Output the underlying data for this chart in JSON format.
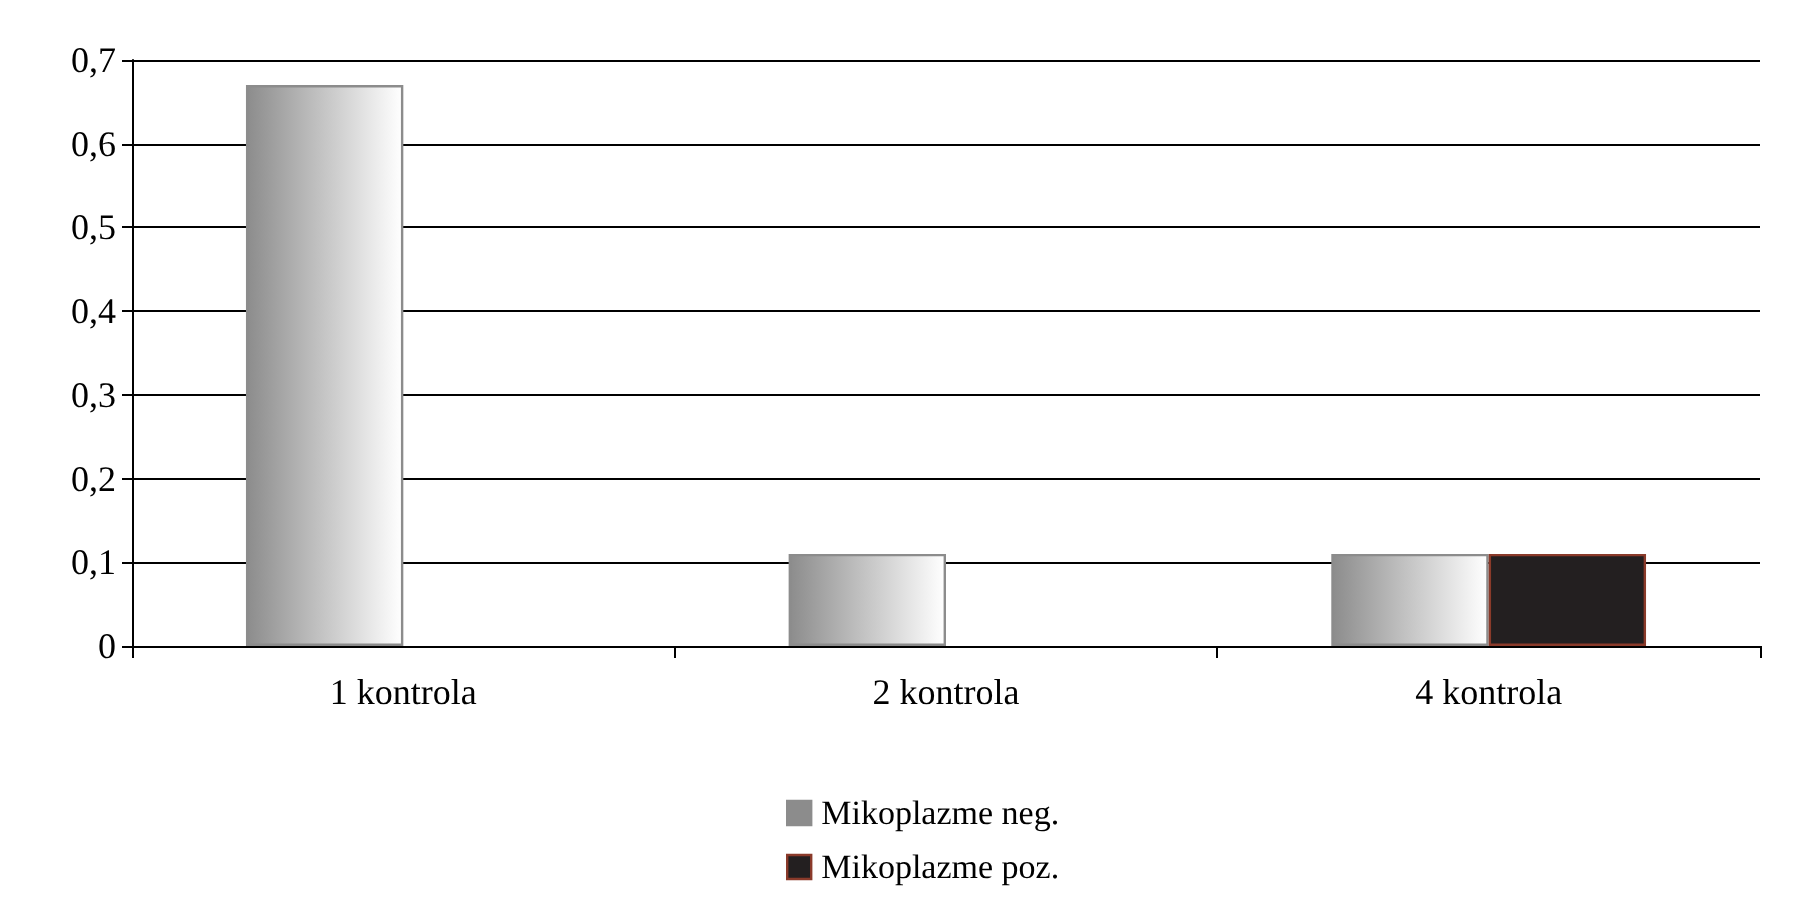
{
  "chart_data": {
    "type": "bar",
    "categories": [
      "1 kontrola",
      "2 kontrola",
      "4 kontrola"
    ],
    "series": [
      {
        "name": "Mikoplazme neg.",
        "color": "#8c8c8c",
        "values": [
          0.67,
          0.11,
          0.11
        ]
      },
      {
        "name": "Mikoplazme poz.",
        "color": "#231f20",
        "values": [
          null,
          null,
          0.11
        ]
      }
    ],
    "ylim": [
      0,
      0.7
    ],
    "yticks": [
      0,
      {
        "value": 0.1,
        "label": "0,1"
      },
      {
        "value": 0.2,
        "label": "0,2"
      },
      {
        "value": 0.3,
        "label": "0,3"
      },
      {
        "value": 0.4,
        "label": "0,4"
      },
      {
        "value": 0.5,
        "label": "0,5"
      },
      {
        "value": 0.6,
        "label": "0,6"
      },
      {
        "value": 0.7,
        "label": "0,7"
      }
    ],
    "grid": "y",
    "legend": "bottom"
  }
}
